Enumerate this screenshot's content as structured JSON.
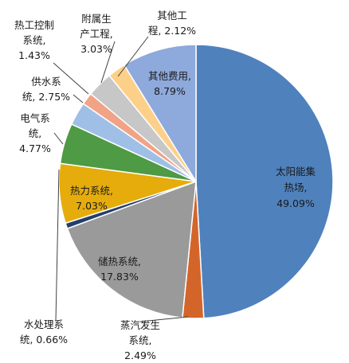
{
  "chart_data": {
    "type": "pie",
    "title": "",
    "slices": [
      {
        "label": "太阳能集热场",
        "text_lines": [
          "太阳能集",
          "热场,",
          "49.09%"
        ],
        "value": 49.09,
        "color": "#4f81bd"
      },
      {
        "label": "蒸汽发生系统",
        "text_lines": [
          "蒸汽发生",
          "系统,",
          "2.49%"
        ],
        "value": 2.49,
        "color": "#d4652a"
      },
      {
        "label": "储热系统",
        "text_lines": [
          "储热系统,",
          "17.83%"
        ],
        "value": 17.83,
        "color": "#9a9a9a"
      },
      {
        "label": "水处理系统",
        "text_lines": [
          "水处理系",
          "统, 0.66%"
        ],
        "value": 0.66,
        "color": "#243e6b"
      },
      {
        "label": "热力系统",
        "text_lines": [
          "热力系统,",
          "7.03%"
        ],
        "value": 7.03,
        "color": "#e5ac0c"
      },
      {
        "label": "电气系统",
        "text_lines": [
          "电气系",
          "统,",
          "4.77%"
        ],
        "value": 4.77,
        "color": "#4f9a44"
      },
      {
        "label": "供水系统",
        "text_lines": [
          "供水系",
          "统, 2.75%"
        ],
        "value": 2.75,
        "color": "#9fbfe6"
      },
      {
        "label": "热工控制系统",
        "text_lines": [
          "热工控制",
          "系统,",
          "1.43%"
        ],
        "value": 1.43,
        "color": "#f0a386"
      },
      {
        "label": "附属生产工程",
        "text_lines": [
          "附属生",
          "产工程,",
          "3.03%"
        ],
        "value": 3.03,
        "color": "#c7c7c7"
      },
      {
        "label": "其他工程",
        "text_lines": [
          "其他工",
          "程, 2.12%"
        ],
        "value": 2.12,
        "color": "#fdd08a"
      },
      {
        "label": "其他费用",
        "text_lines": [
          "其他费用,",
          "8.79%"
        ],
        "value": 8.79,
        "color": "#8ea9db"
      }
    ]
  }
}
